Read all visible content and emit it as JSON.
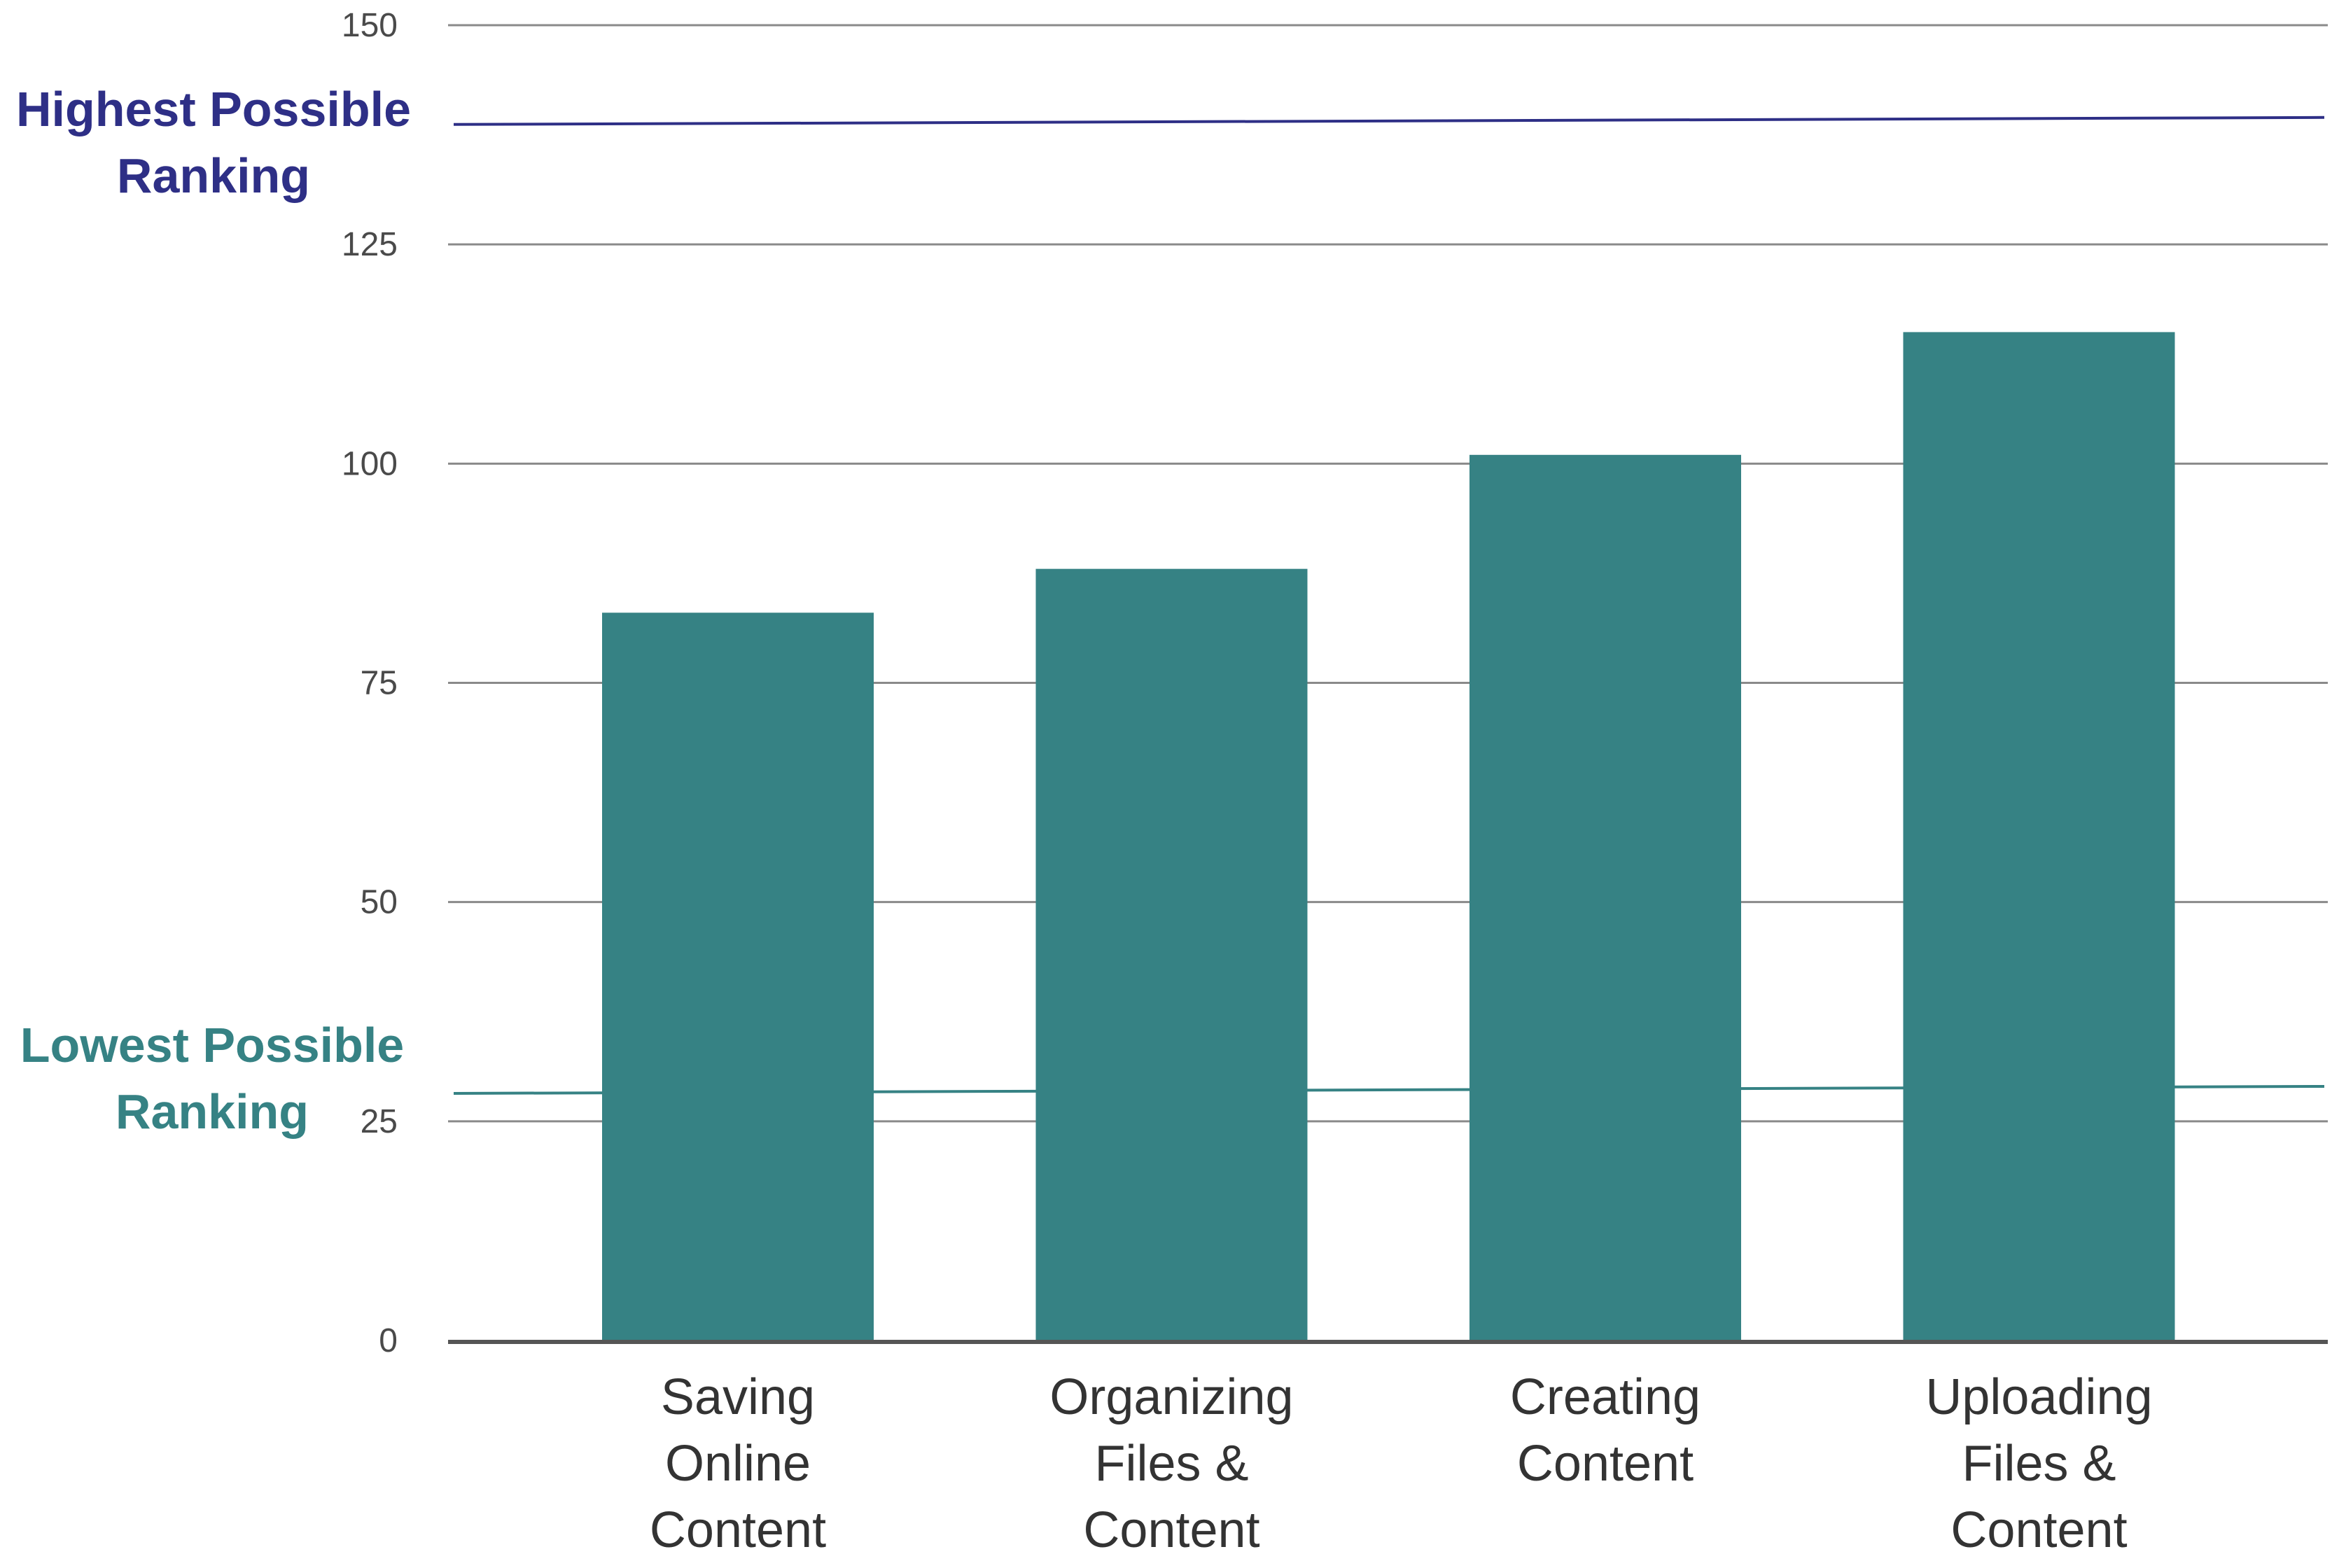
{
  "chart_data": {
    "type": "bar",
    "categories": [
      [
        "Saving",
        "Online",
        "Content"
      ],
      [
        "Organizing",
        "Files &",
        "Content"
      ],
      [
        "Creating",
        "Content"
      ],
      [
        "Uploading",
        "Files &",
        "Content"
      ]
    ],
    "values": [
      83,
      88,
      101,
      115
    ],
    "ylim": [
      0,
      150
    ],
    "yticks": [
      "0",
      "25",
      "50",
      "75",
      "100",
      "125",
      "150"
    ],
    "grid": true,
    "colors": {
      "bar": "#368284",
      "grid": "#8a8a8a",
      "axis": "#555555",
      "highest": "#2e2f86",
      "lowest": "#368284"
    },
    "reference_lines": [
      {
        "label": [
          "Highest Possible",
          "Ranking"
        ],
        "value": 139,
        "color_key": "highest"
      },
      {
        "label": [
          "Lowest Possible",
          "Ranking"
        ],
        "value": 28.5,
        "color_key": "lowest"
      }
    ]
  }
}
